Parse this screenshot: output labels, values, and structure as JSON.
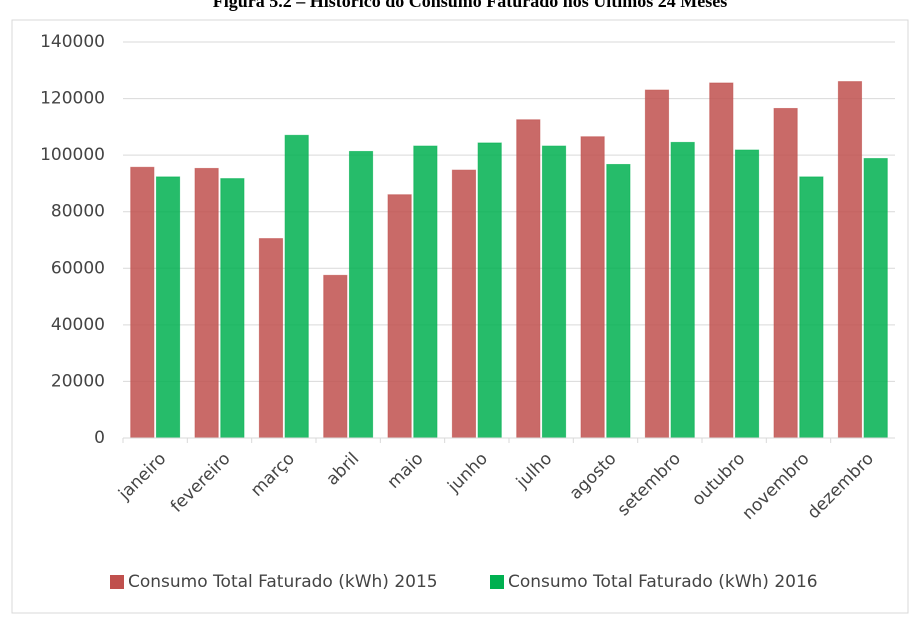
{
  "chart_data": {
    "type": "bar",
    "title": "Figura 5.2 – Histórico do Consumo Faturado nos Últimos 24 Meses",
    "categories": [
      "janeiro",
      "fevereiro",
      "março",
      "abril",
      "maio",
      "junho",
      "julho",
      "agosto",
      "setembro",
      "outubro",
      "novembro",
      "dezembro"
    ],
    "series": [
      {
        "name": "Consumo Total Faturado (kWh) 2015",
        "color": "#c0504d",
        "values": [
          95700,
          95300,
          70500,
          57500,
          86000,
          94700,
          112500,
          106500,
          123000,
          125500,
          116500,
          126000
        ]
      },
      {
        "name": "Consumo Total Faturado (kWh) 2016",
        "color": "#00b050",
        "values": [
          92300,
          91700,
          107000,
          101300,
          103200,
          104300,
          103200,
          96700,
          104500,
          101800,
          92300,
          98800
        ]
      }
    ],
    "ylim": [
      0,
      140000
    ],
    "yticks": [
      0,
      20000,
      40000,
      60000,
      80000,
      100000,
      120000,
      140000
    ],
    "grid": true,
    "legend": "bottom"
  }
}
